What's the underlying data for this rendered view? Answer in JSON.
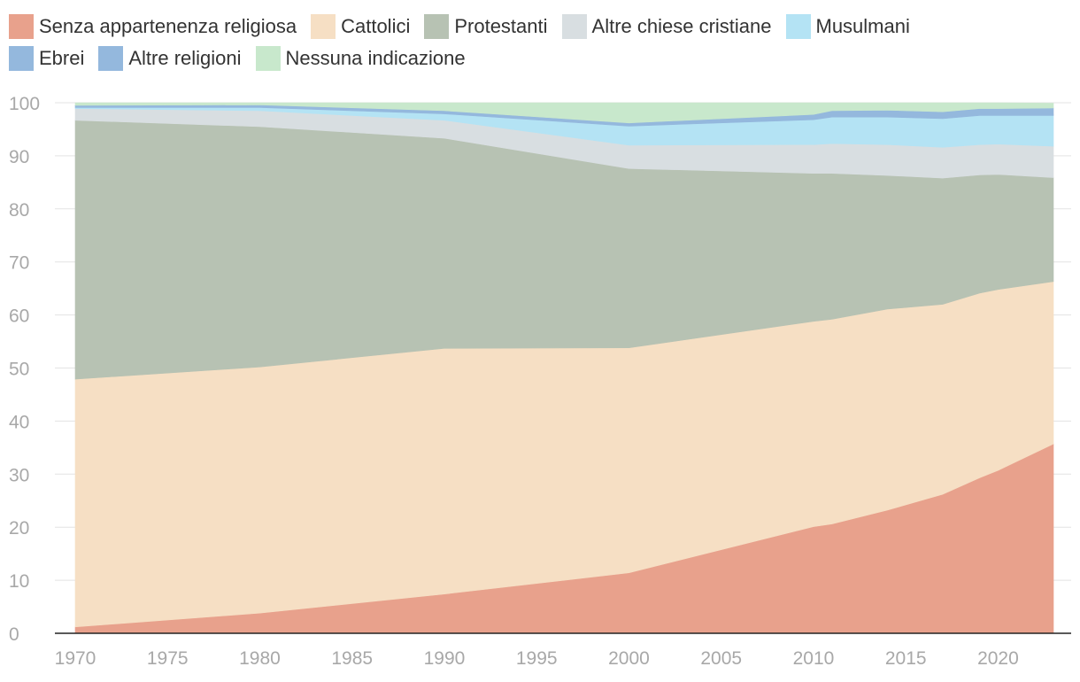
{
  "chart_data": {
    "type": "area",
    "stacked": true,
    "title": "",
    "xlabel": "",
    "ylabel": "",
    "ylim": [
      0,
      100
    ],
    "yticks": [
      "0",
      "10",
      "20",
      "30",
      "40",
      "50",
      "60",
      "70",
      "80",
      "90",
      "100"
    ],
    "xticks": [
      "1970",
      "1975",
      "1980",
      "1985",
      "1990",
      "1995",
      "2000",
      "2005",
      "2010",
      "2015",
      "2020"
    ],
    "xtick_values": [
      1970,
      1975,
      1980,
      1985,
      1990,
      1995,
      2000,
      2005,
      2010,
      2015,
      2020
    ],
    "xlim": [
      1970,
      2023
    ],
    "grid": true,
    "legend_position": "top",
    "x": [
      1970,
      1980,
      1990,
      2000,
      2010,
      2011,
      2014,
      2017,
      2019,
      2020,
      2023
    ],
    "series": [
      {
        "name": "Senza appartenenza religiosa",
        "color": "#e8a18c",
        "values": [
          1.2,
          3.8,
          7.4,
          11.4,
          20.1,
          20.6,
          23.2,
          26.2,
          29.3,
          30.7,
          35.7
        ]
      },
      {
        "name": "Cattolici",
        "color": "#f6dfc4",
        "values": [
          46.7,
          46.4,
          46.3,
          42.4,
          38.7,
          38.6,
          37.9,
          35.8,
          34.8,
          34.1,
          30.6
        ]
      },
      {
        "name": "Protestanti",
        "color": "#b7c2b3",
        "values": [
          48.8,
          45.3,
          39.6,
          33.8,
          27.9,
          27.5,
          25.2,
          23.8,
          22.3,
          21.7,
          19.6
        ]
      },
      {
        "name": "Altre chiese cristiane",
        "color": "#d8dee1",
        "values": [
          2.2,
          3.0,
          3.4,
          4.4,
          5.4,
          5.6,
          5.8,
          5.8,
          5.7,
          5.7,
          5.9
        ]
      },
      {
        "name": "Musulmani",
        "color": "#b4e3f4",
        "values": [
          0.2,
          0.6,
          1.2,
          3.6,
          4.7,
          5.0,
          5.2,
          5.4,
          5.5,
          5.4,
          5.8
        ]
      },
      {
        "name": "Ebrei",
        "color": "#94b8dd",
        "values": [
          0.3,
          0.3,
          0.3,
          0.2,
          0.2,
          0.2,
          0.2,
          0.2,
          0.2,
          0.2,
          0.2
        ]
      },
      {
        "name": "Altre religioni",
        "color": "#94b8dd",
        "values": [
          0.1,
          0.2,
          0.3,
          0.4,
          0.8,
          1.0,
          1.1,
          1.1,
          1.1,
          1.1,
          1.2
        ]
      },
      {
        "name": "Nessuna indicazione",
        "color": "#c8e8cc",
        "values": [
          0.5,
          0.4,
          1.5,
          3.8,
          2.2,
          1.5,
          1.4,
          1.7,
          1.1,
          1.1,
          0.9
        ]
      }
    ]
  }
}
